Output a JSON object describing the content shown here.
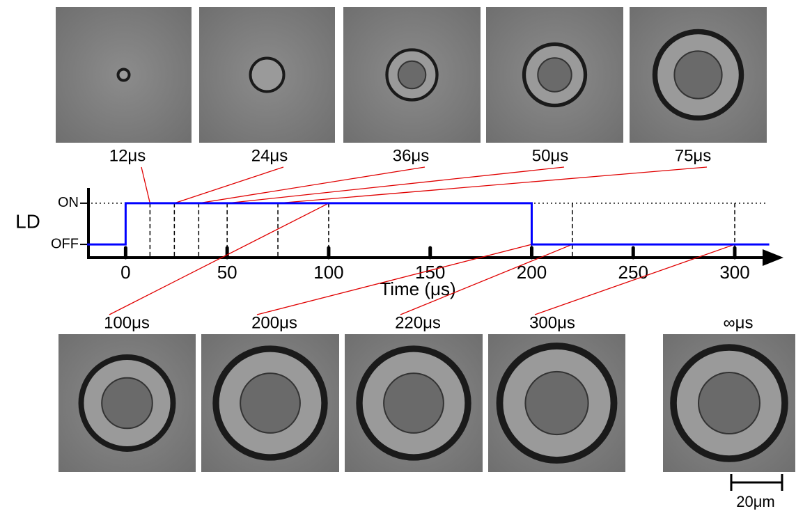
{
  "chart_data": {
    "type": "line",
    "ylabel": "LD",
    "xlabel": "Time (μs)",
    "x": [
      -19,
      0,
      0,
      200,
      200,
      317
    ],
    "values": [
      0,
      0,
      1,
      1,
      0,
      0
    ],
    "color": "#0000ff",
    "xlim": [
      -19,
      324
    ],
    "xticks": [
      0,
      50,
      100,
      150,
      200,
      250,
      300
    ],
    "ylim": [
      -0.32,
      1.37
    ],
    "yticks": [
      {
        "value": 1,
        "label": "ON"
      },
      {
        "value": 0,
        "label": "OFF"
      }
    ],
    "snapshots": [
      {
        "time": 12,
        "label": "12μs"
      },
      {
        "time": 24,
        "label": "24μs"
      },
      {
        "time": 36,
        "label": "36μs"
      },
      {
        "time": 50,
        "label": "50μs"
      },
      {
        "time": 75,
        "label": "75μs"
      },
      {
        "time": 100,
        "label": "100μs"
      },
      {
        "time": 200,
        "label": "200μs"
      },
      {
        "time": 220,
        "label": "220μs"
      },
      {
        "time": 300,
        "label": "300μs"
      },
      {
        "label": "∞μs"
      }
    ],
    "scale_bar": "20μm"
  }
}
